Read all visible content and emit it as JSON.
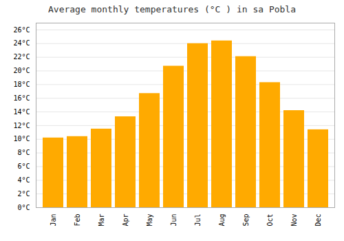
{
  "chart_data": {
    "type": "bar",
    "title": "Average monthly temperatures (°C ) in sa Pobla",
    "categories": [
      "Jan",
      "Feb",
      "Mar",
      "Apr",
      "May",
      "Jun",
      "Jul",
      "Aug",
      "Sep",
      "Oct",
      "Nov",
      "Dec"
    ],
    "values": [
      10.2,
      10.4,
      11.5,
      13.3,
      16.7,
      20.7,
      24.0,
      24.4,
      22.1,
      18.3,
      14.2,
      11.4
    ],
    "color": "#FFAA00",
    "ylim": [
      0,
      27
    ],
    "yticks": [
      {
        "value": 0,
        "label": "0°C"
      },
      {
        "value": 2,
        "label": "2°C"
      },
      {
        "value": 4,
        "label": "4°C"
      },
      {
        "value": 6,
        "label": "6°C"
      },
      {
        "value": 8,
        "label": "8°C"
      },
      {
        "value": 10,
        "label": "10°C"
      },
      {
        "value": 12,
        "label": "12°C"
      },
      {
        "value": 14,
        "label": "14°C"
      },
      {
        "value": 16,
        "label": "16°C"
      },
      {
        "value": 18,
        "label": "18°C"
      },
      {
        "value": 20,
        "label": "20°C"
      },
      {
        "value": 22,
        "label": "22°C"
      },
      {
        "value": 24,
        "label": "24°C"
      },
      {
        "value": 26,
        "label": "26°C"
      }
    ],
    "grid": true
  }
}
